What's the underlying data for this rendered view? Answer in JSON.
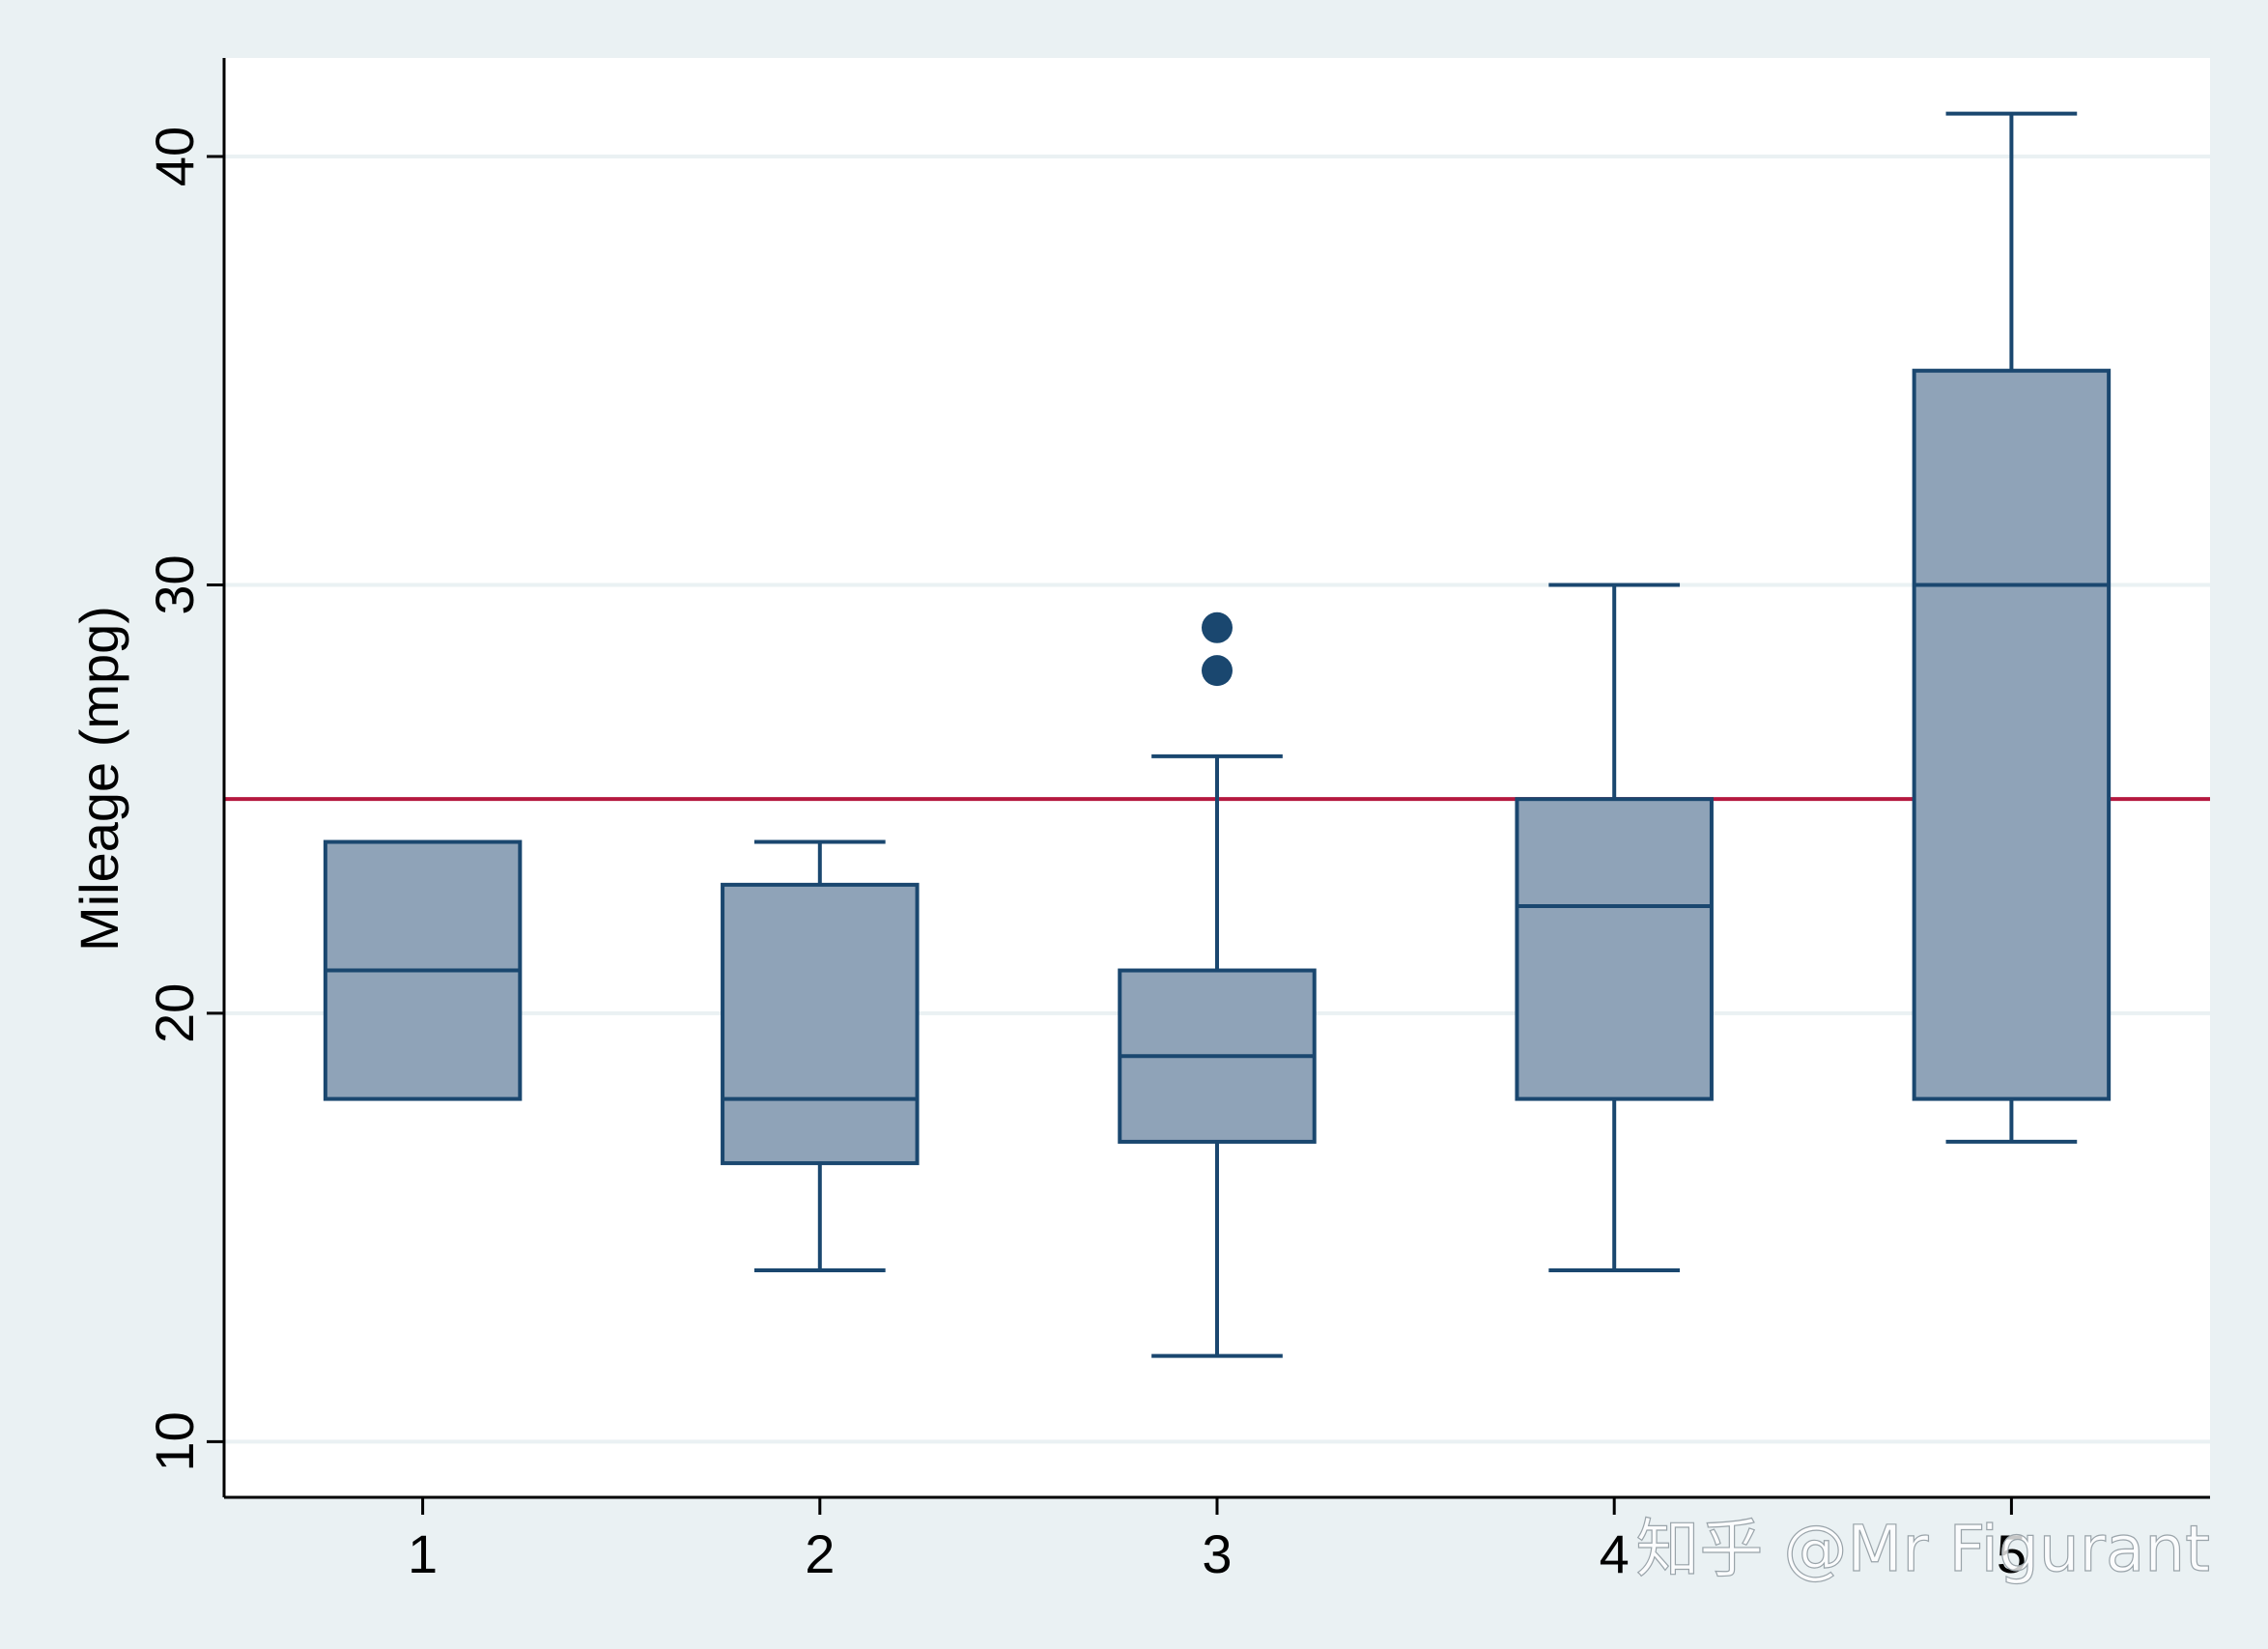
{
  "chart_data": {
    "type": "box",
    "categories": [
      "1",
      "2",
      "3",
      "4",
      "5"
    ],
    "series": [
      {
        "values": [
          {
            "category": "1",
            "whisker_low": 18,
            "q1": 18,
            "median": 21,
            "q3": 24,
            "whisker_high": 24,
            "outliers": []
          },
          {
            "category": "2",
            "whisker_low": 14,
            "q1": 16.5,
            "median": 18,
            "q3": 23,
            "whisker_high": 24,
            "outliers": []
          },
          {
            "category": "3",
            "whisker_low": 12,
            "q1": 17,
            "median": 19,
            "q3": 21,
            "whisker_high": 26,
            "outliers": [
              28,
              29
            ]
          },
          {
            "category": "4",
            "whisker_low": 14,
            "q1": 18,
            "median": 22.5,
            "q3": 25,
            "whisker_high": 30,
            "outliers": []
          },
          {
            "category": "5",
            "whisker_low": 17,
            "q1": 18,
            "median": 30,
            "q3": 35,
            "whisker_high": 41,
            "outliers": []
          }
        ]
      }
    ],
    "reference_line": {
      "y": 25,
      "color": "#b5193f"
    },
    "ylabel": "Mileage (mpg)",
    "xlabel": "",
    "title": "",
    "yticks": [
      10,
      20,
      30,
      40
    ],
    "ylim": [
      8.7,
      42.3
    ],
    "grid": true,
    "legend": "none",
    "colors": {
      "box_fill": "#8fa3b8",
      "box_stroke": "#1a476f",
      "grid": "#eaf1f3",
      "plot_bg": "#ffffff",
      "outer_bg": "#eaf1f3"
    }
  },
  "watermark": "知乎 @Mr Figurant"
}
